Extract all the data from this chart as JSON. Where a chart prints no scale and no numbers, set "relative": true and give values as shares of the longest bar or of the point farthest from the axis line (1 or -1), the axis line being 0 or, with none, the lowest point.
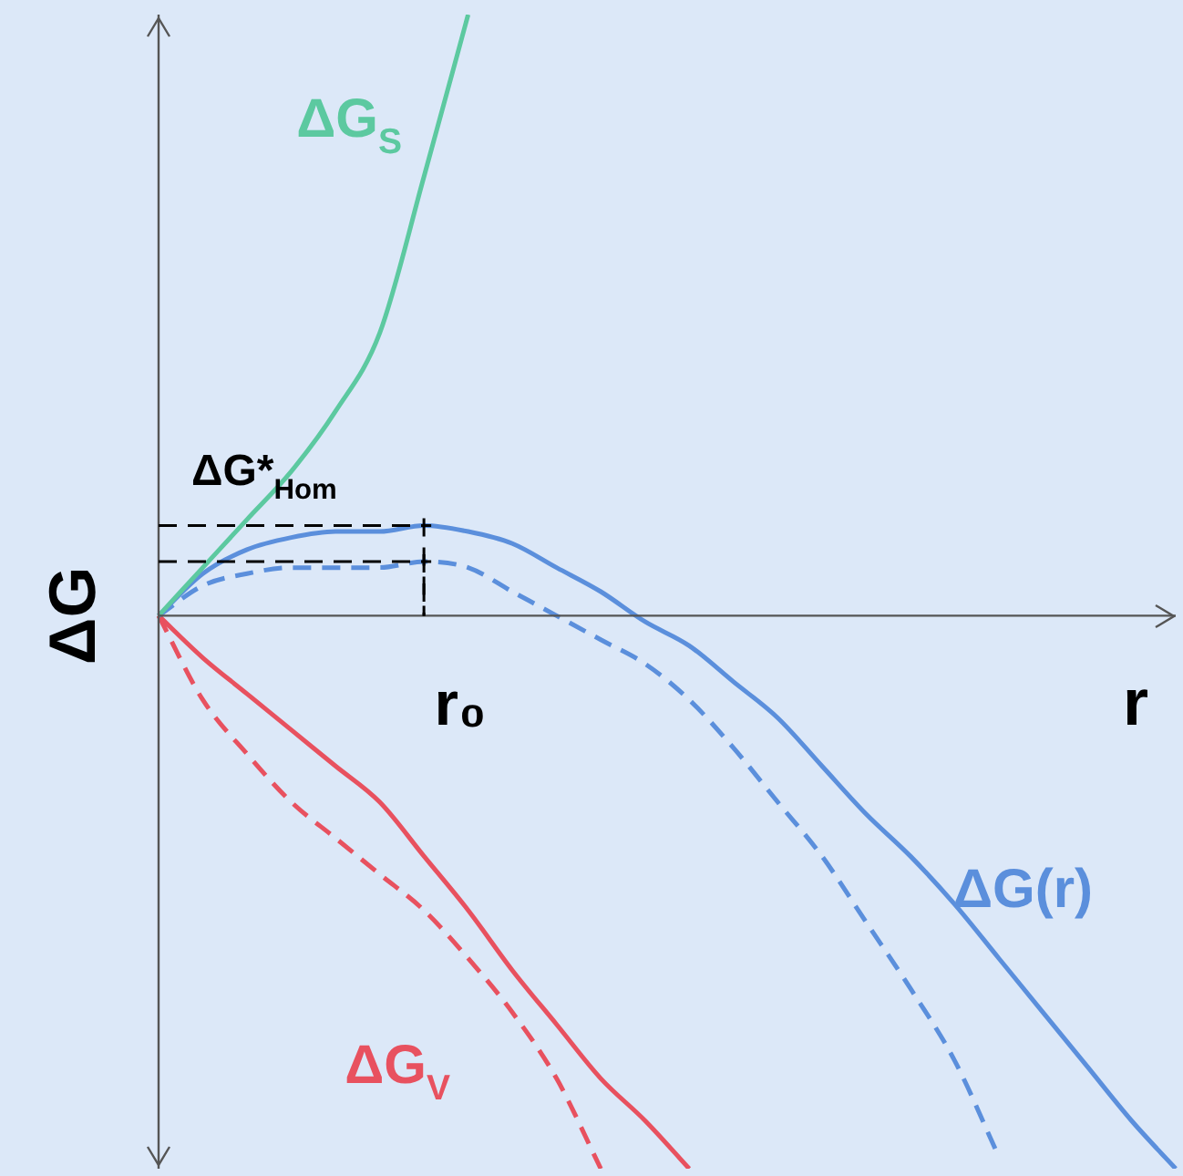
{
  "chart_data": {
    "type": "line",
    "relative": true,
    "xlabel": "r",
    "ylabel": "ΔG",
    "legend": false,
    "grid": false,
    "categories": [
      null,
      null,
      null,
      null,
      null,
      null,
      null,
      null,
      null,
      null,
      null,
      null,
      null,
      null,
      null,
      null,
      null,
      null,
      null,
      null,
      null,
      null,
      null,
      null
    ],
    "series": [
      {
        "name": "ΔG$_{S}$",
        "color": "#5cc9a0",
        "values": [
          0,
          0.08,
          0.16,
          0.24,
          0.34,
          0.47,
          0.73,
          1,
          null,
          null,
          null,
          null,
          null,
          null,
          null,
          null,
          null,
          null,
          null,
          null,
          null,
          null,
          null,
          null
        ]
      },
      {
        "name": "ΔG(r)",
        "color": "#5b8fdc",
        "values": [
          0,
          0.07,
          0.11,
          0.13,
          0.14,
          0.14,
          0.15,
          0.14,
          0.12,
          0.08,
          0.04,
          -0.01,
          -0.05,
          -0.11,
          -0.17,
          -0.25,
          -0.33,
          -0.4,
          -0.48,
          -0.57,
          -0.66,
          -0.75,
          -0.84,
          -0.92
        ]
      },
      {
        "color": "#5b8fdc",
        "line_style": "dashed",
        "values": [
          0,
          0.05,
          0.07,
          0.08,
          0.08,
          0.08,
          0.09,
          0.08,
          0.04,
          0,
          -0.04,
          -0.08,
          -0.14,
          -0.22,
          -0.31,
          -0.4,
          -0.51,
          -0.62,
          -0.74,
          -0.9,
          null,
          null,
          null,
          null
        ]
      },
      {
        "name": "ΔG$_{V}$",
        "color": "#e8515f",
        "values": [
          0,
          -0.07,
          -0.13,
          -0.19,
          -0.25,
          -0.31,
          -0.4,
          -0.49,
          -0.59,
          -0.68,
          -0.77,
          -0.84,
          -0.92,
          null,
          null,
          null,
          null,
          null,
          null,
          null,
          null,
          null,
          null,
          null
        ]
      },
      {
        "color": "#e8515f",
        "line_style": "dashed",
        "values": [
          0,
          -0.14,
          -0.23,
          -0.31,
          -0.37,
          -0.43,
          -0.49,
          -0.57,
          -0.66,
          -0.77,
          -0.92,
          null,
          null,
          null,
          null,
          null,
          null,
          null,
          null,
          null,
          null,
          null,
          null,
          null
        ]
      }
    ],
    "ref_lines": [
      {
        "axis": "y",
        "value": 0.15,
        "label": "ΔG*$_{Hom}$",
        "line_style": "dashed",
        "color": "#000000"
      },
      {
        "axis": "y",
        "value": 0.09,
        "line_style": "dashed",
        "color": "#000000"
      }
    ],
    "annotations": [
      "r₀"
    ]
  }
}
